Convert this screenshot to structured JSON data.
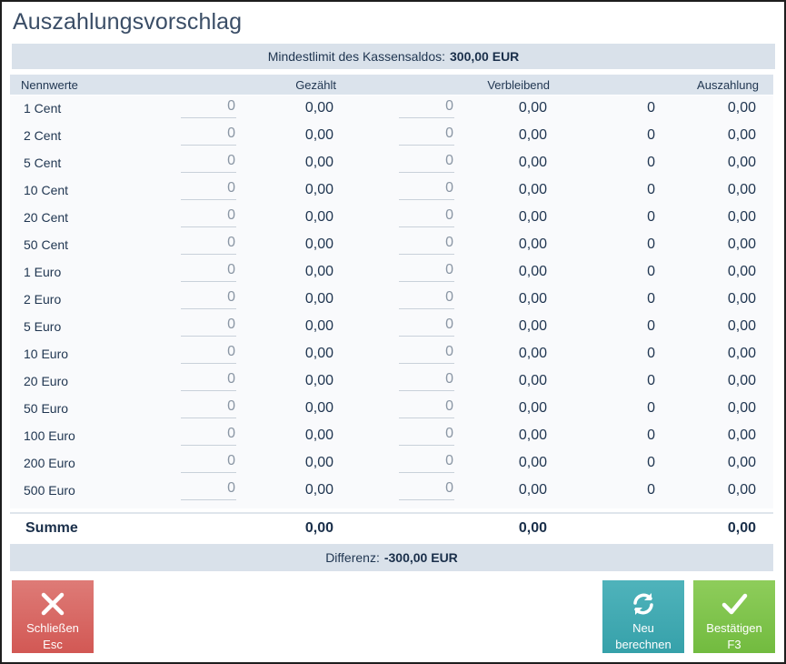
{
  "dialog": {
    "title": "Auszahlungsvorschlag",
    "min_limit_label": "Mindestlimit des Kassensaldos:",
    "min_limit_value": "300,00 EUR",
    "difference_label": "Differenz:",
    "difference_value": "-300,00 EUR"
  },
  "columns": {
    "denomination": "Nennwerte",
    "counted": "Gezählt",
    "remaining": "Verbleibend",
    "payout": "Auszahlung"
  },
  "rows": [
    {
      "denom": "1 Cent",
      "counted_qty": "0",
      "counted_amount": "0,00",
      "remaining_qty": "0",
      "remaining_amount": "0,00",
      "payout_qty": "0",
      "payout_amount": "0,00"
    },
    {
      "denom": "2 Cent",
      "counted_qty": "0",
      "counted_amount": "0,00",
      "remaining_qty": "0",
      "remaining_amount": "0,00",
      "payout_qty": "0",
      "payout_amount": "0,00"
    },
    {
      "denom": "5 Cent",
      "counted_qty": "0",
      "counted_amount": "0,00",
      "remaining_qty": "0",
      "remaining_amount": "0,00",
      "payout_qty": "0",
      "payout_amount": "0,00"
    },
    {
      "denom": "10 Cent",
      "counted_qty": "0",
      "counted_amount": "0,00",
      "remaining_qty": "0",
      "remaining_amount": "0,00",
      "payout_qty": "0",
      "payout_amount": "0,00"
    },
    {
      "denom": "20 Cent",
      "counted_qty": "0",
      "counted_amount": "0,00",
      "remaining_qty": "0",
      "remaining_amount": "0,00",
      "payout_qty": "0",
      "payout_amount": "0,00"
    },
    {
      "denom": "50 Cent",
      "counted_qty": "0",
      "counted_amount": "0,00",
      "remaining_qty": "0",
      "remaining_amount": "0,00",
      "payout_qty": "0",
      "payout_amount": "0,00"
    },
    {
      "denom": "1 Euro",
      "counted_qty": "0",
      "counted_amount": "0,00",
      "remaining_qty": "0",
      "remaining_amount": "0,00",
      "payout_qty": "0",
      "payout_amount": "0,00"
    },
    {
      "denom": "2 Euro",
      "counted_qty": "0",
      "counted_amount": "0,00",
      "remaining_qty": "0",
      "remaining_amount": "0,00",
      "payout_qty": "0",
      "payout_amount": "0,00"
    },
    {
      "denom": "5 Euro",
      "counted_qty": "0",
      "counted_amount": "0,00",
      "remaining_qty": "0",
      "remaining_amount": "0,00",
      "payout_qty": "0",
      "payout_amount": "0,00"
    },
    {
      "denom": "10 Euro",
      "counted_qty": "0",
      "counted_amount": "0,00",
      "remaining_qty": "0",
      "remaining_amount": "0,00",
      "payout_qty": "0",
      "payout_amount": "0,00"
    },
    {
      "denom": "20 Euro",
      "counted_qty": "0",
      "counted_amount": "0,00",
      "remaining_qty": "0",
      "remaining_amount": "0,00",
      "payout_qty": "0",
      "payout_amount": "0,00"
    },
    {
      "denom": "50 Euro",
      "counted_qty": "0",
      "counted_amount": "0,00",
      "remaining_qty": "0",
      "remaining_amount": "0,00",
      "payout_qty": "0",
      "payout_amount": "0,00"
    },
    {
      "denom": "100 Euro",
      "counted_qty": "0",
      "counted_amount": "0,00",
      "remaining_qty": "0",
      "remaining_amount": "0,00",
      "payout_qty": "0",
      "payout_amount": "0,00"
    },
    {
      "denom": "200 Euro",
      "counted_qty": "0",
      "counted_amount": "0,00",
      "remaining_qty": "0",
      "remaining_amount": "0,00",
      "payout_qty": "0",
      "payout_amount": "0,00"
    },
    {
      "denom": "500 Euro",
      "counted_qty": "0",
      "counted_amount": "0,00",
      "remaining_qty": "0",
      "remaining_amount": "0,00",
      "payout_qty": "0",
      "payout_amount": "0,00"
    }
  ],
  "totals": {
    "label": "Summe",
    "counted": "0,00",
    "remaining": "0,00",
    "payout": "0,00"
  },
  "buttons": {
    "close": {
      "label": "Schließen",
      "shortcut": "Esc",
      "icon": "close-icon"
    },
    "recalculate": {
      "label_line1": "Neu",
      "label_line2": "berechnen",
      "icon": "refresh-icon"
    },
    "confirm": {
      "label": "Bestätigen",
      "shortcut": "F3",
      "icon": "checkmark-icon"
    }
  },
  "colors": {
    "close": "#d9615d",
    "recalculate": "#3fa8b1",
    "confirm": "#7cc24a",
    "banner": "#d9e1ea",
    "text": "#1f3550"
  }
}
